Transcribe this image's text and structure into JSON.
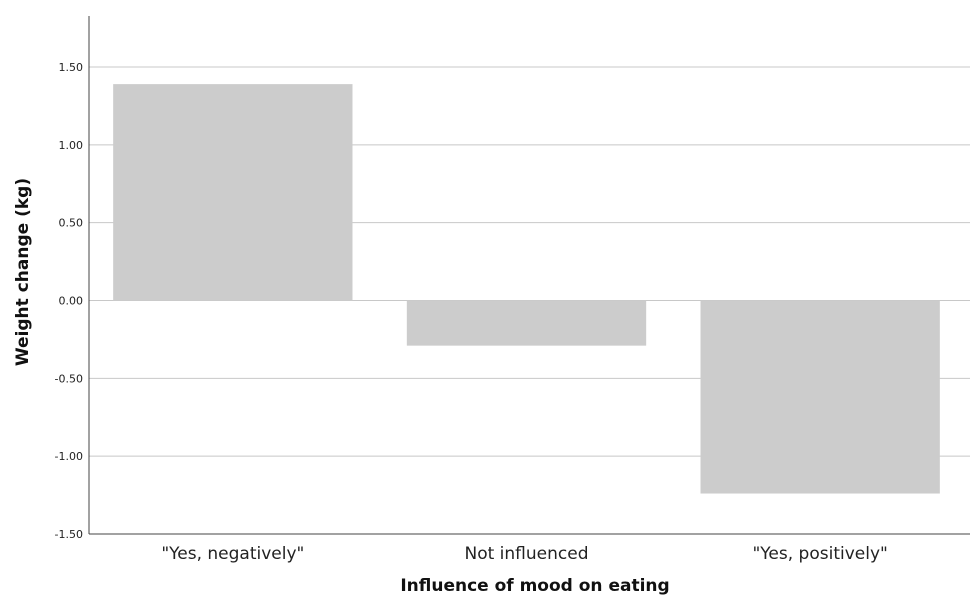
{
  "chart_data": {
    "type": "bar",
    "title": "",
    "xlabel": "Influence of mood on eating",
    "ylabel": "Weight change (kg)",
    "categories": [
      "\"Yes, negatively\"",
      "Not influenced",
      "\"Yes, positively\""
    ],
    "values": [
      1.39,
      -0.29,
      -1.24
    ],
    "ylim": [
      -1.5,
      1.8
    ],
    "yticks": [
      -1.5,
      -1.0,
      -0.5,
      0.0,
      0.5,
      1.0,
      1.5
    ],
    "ytick_labels": [
      "-1.50",
      "-1.00",
      "-0.50",
      "0.00",
      "0.50",
      "1.00",
      "1.50"
    ],
    "grid": "horizontal",
    "legend": "none",
    "colors": {
      "bar": "#cccccc",
      "grid": "#c8c8c8",
      "axis": "#444444"
    }
  }
}
